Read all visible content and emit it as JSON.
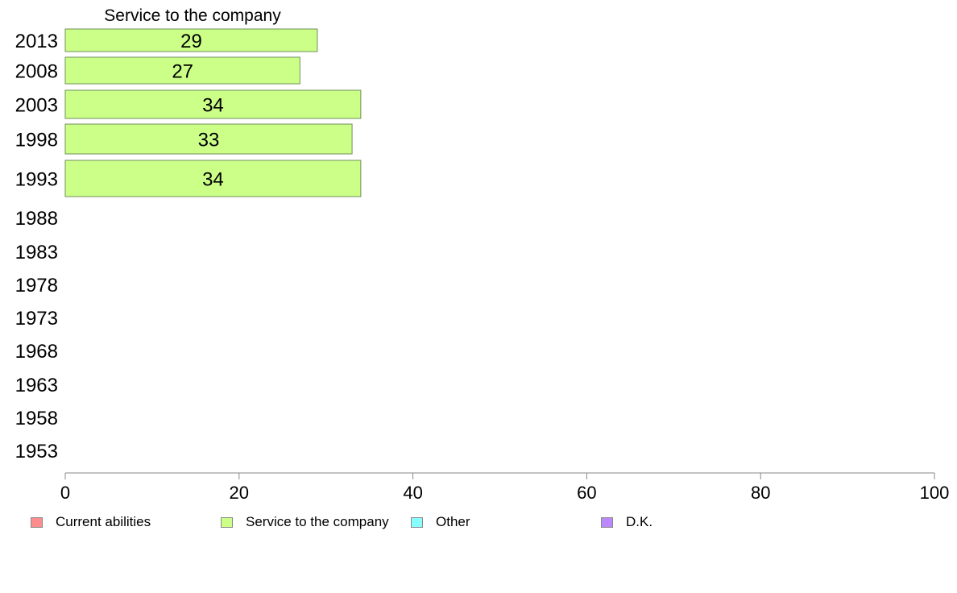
{
  "chart_data": {
    "type": "bar",
    "orientation": "horizontal",
    "title": "Service to the company",
    "categories": [
      "2013",
      "2008",
      "2003",
      "1998",
      "1993",
      "1988",
      "1983",
      "1978",
      "1973",
      "1968",
      "1963",
      "1958",
      "1953"
    ],
    "series": [
      {
        "name": "Service to the company",
        "color": "#ccff88",
        "values": [
          29,
          27,
          34,
          33,
          34,
          null,
          null,
          null,
          null,
          null,
          null,
          null,
          null
        ]
      }
    ],
    "xlim": [
      0,
      100
    ],
    "xticks": [
      0,
      20,
      40,
      60,
      80,
      100
    ],
    "grid": false,
    "legend_position": "bottom",
    "legend": [
      {
        "label": "Current abilities",
        "color": "#ff8c8c"
      },
      {
        "label": "Service to the company",
        "color": "#ccff88"
      },
      {
        "label": "Other",
        "color": "#88ffff"
      },
      {
        "label": "D.K.",
        "color": "#bb88ff"
      }
    ]
  }
}
